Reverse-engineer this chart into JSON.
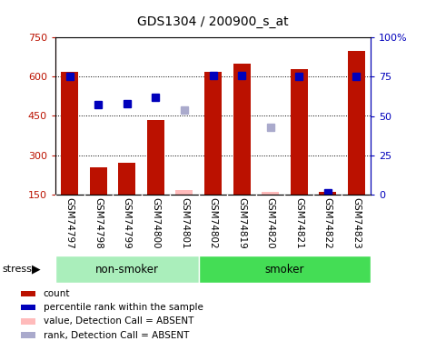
{
  "title": "GDS1304 / 200900_s_at",
  "samples": [
    "GSM74797",
    "GSM74798",
    "GSM74799",
    "GSM74800",
    "GSM74801",
    "GSM74802",
    "GSM74819",
    "GSM74820",
    "GSM74821",
    "GSM74822",
    "GSM74823"
  ],
  "bar_data": {
    "GSM74797": {
      "value": 620,
      "rank": 75,
      "absent": false
    },
    "GSM74798": {
      "value": 255,
      "rank": 57,
      "absent": false
    },
    "GSM74799": {
      "value": 270,
      "rank": 58,
      "absent": false
    },
    "GSM74800": {
      "value": 435,
      "rank": 62,
      "absent": false
    },
    "GSM74801": {
      "value": 165,
      "rank": null,
      "absent": true,
      "absent_rank": 54
    },
    "GSM74802": {
      "value": 620,
      "rank": 76,
      "absent": false
    },
    "GSM74819": {
      "value": 650,
      "rank": 76,
      "absent": false
    },
    "GSM74820": {
      "value": 160,
      "rank": null,
      "absent": true,
      "absent_rank": 43
    },
    "GSM74821": {
      "value": 630,
      "rank": 75,
      "absent": false
    },
    "GSM74822": {
      "value": 160,
      "rank": 1,
      "absent": false
    },
    "GSM74823": {
      "value": 700,
      "rank": 75,
      "absent": false
    }
  },
  "ylim_left": [
    150,
    750
  ],
  "ylim_right": [
    0,
    100
  ],
  "yticks_left": [
    150,
    300,
    450,
    600,
    750
  ],
  "yticks_right": [
    0,
    25,
    50,
    75,
    100
  ],
  "bar_color": "#bb1100",
  "absent_bar_color": "#ffbbbb",
  "rank_color": "#0000bb",
  "absent_rank_color": "#aaaacc",
  "grid_values": [
    300,
    450,
    600
  ],
  "non_smoker_color": "#aaeebb",
  "smoker_color": "#44dd55",
  "non_smoker_count": 5,
  "smoker_count": 6,
  "legend_items": [
    {
      "label": "count",
      "color": "#bb1100"
    },
    {
      "label": "percentile rank within the sample",
      "color": "#0000bb"
    },
    {
      "label": "value, Detection Call = ABSENT",
      "color": "#ffbbbb"
    },
    {
      "label": "rank, Detection Call = ABSENT",
      "color": "#aaaacc"
    }
  ]
}
